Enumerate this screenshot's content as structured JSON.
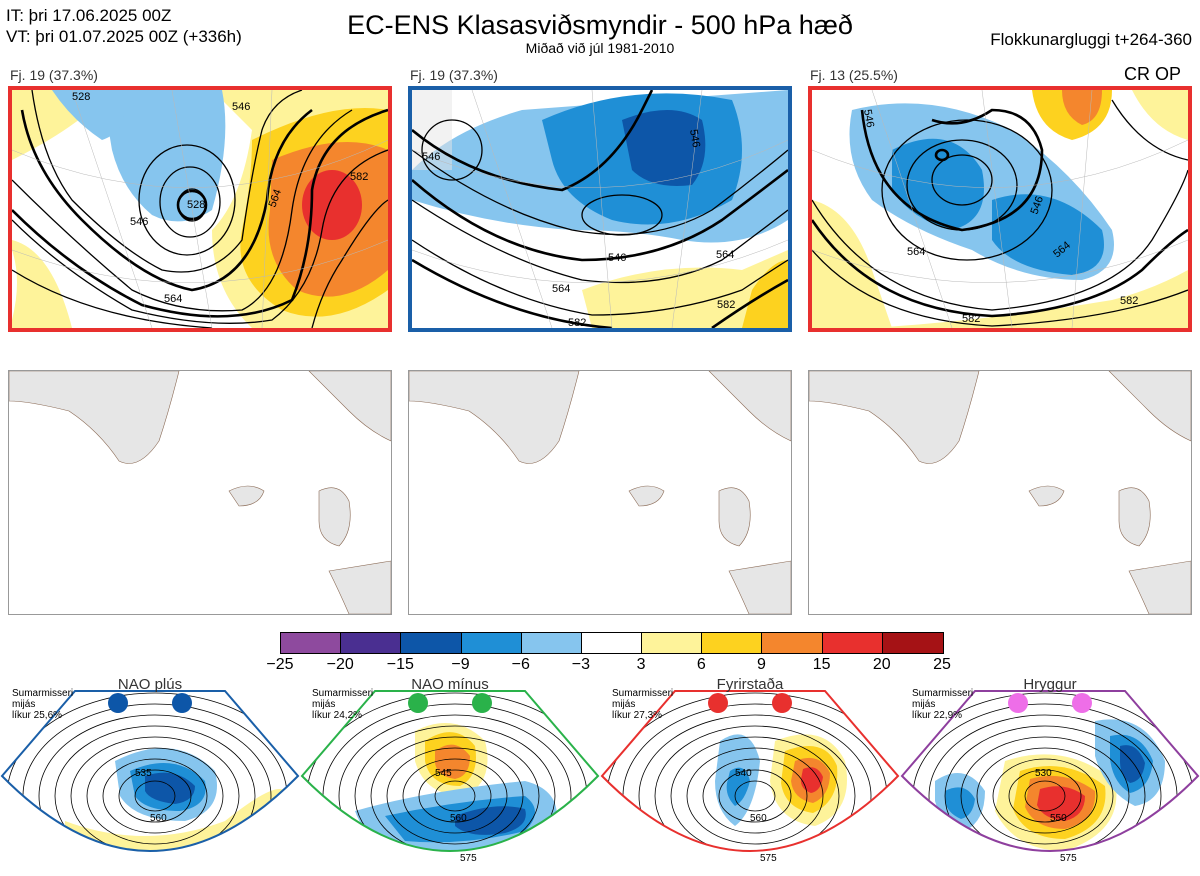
{
  "header": {
    "init_time": "IT: þri 17.06.2025 00Z",
    "valid_time": "VT: þri 01.07.2025 00Z  (+336h)",
    "title": "EC-ENS Klasasviðsmyndir - 500 hPa hæð",
    "subtitle": "Miðað við júl 1981-2010",
    "window": "Flokkunargluggi t+264-360"
  },
  "panels": [
    {
      "label": "Fj. 19 (37.3%)",
      "frame_color": "#e8302e",
      "contours": [
        "528",
        "546",
        "564",
        "582",
        "546",
        "564",
        "582"
      ]
    },
    {
      "label": "Fj. 19 (37.3%)",
      "frame_color": "#1a5fa8",
      "contours": [
        "546",
        "546",
        "564",
        "582",
        "582",
        "564",
        "546"
      ]
    },
    {
      "label": "Fj. 13 (25.5%)",
      "frame_color": "#e8302e",
      "contours": [
        "546",
        "564",
        "582",
        "564",
        "546"
      ],
      "tag": "CR OP"
    }
  ],
  "colorbar": {
    "ticks": [
      "−25",
      "−20",
      "−15",
      "−9",
      "−6",
      "−3",
      "3",
      "6",
      "9",
      "15",
      "20",
      "25"
    ],
    "colors": [
      "#8e4a9e",
      "#4a2f91",
      "#0d56a8",
      "#1f8fd6",
      "#86c5ee",
      "#ffffff",
      "#fef39a",
      "#fdd21f",
      "#f4862d",
      "#e8302e",
      "#a51215"
    ]
  },
  "regimes": [
    {
      "name": "NAO plús",
      "line1": "Sumarmisseri",
      "line2": "mijás",
      "line3": "líkur 25,6%",
      "dot_color": "#0d56a8",
      "frame": "#1a5fa8",
      "contours": [
        "535",
        "560"
      ]
    },
    {
      "name": "NAO mínus",
      "line1": "Sumarmisseri",
      "line2": "mijás",
      "line3": "líkur 24,2%",
      "dot_color": "#2ab24a",
      "frame": "#2ab24a",
      "contours": [
        "545",
        "560",
        "575"
      ]
    },
    {
      "name": "Fyrirstaða",
      "line1": "Sumarmisseri",
      "line2": "mijás",
      "line3": "líkur 27,3%",
      "dot_color": "#e8302e",
      "frame": "#e8302e",
      "contours": [
        "540",
        "560",
        "575"
      ]
    },
    {
      "name": "Hryggur",
      "line1": "Sumarmisseri",
      "line2": "mijás",
      "line3": "líkur 22,9%",
      "dot_color": "#ee6ee8",
      "frame": "#8e3f9e",
      "contours": [
        "530",
        "550",
        "575"
      ]
    }
  ]
}
